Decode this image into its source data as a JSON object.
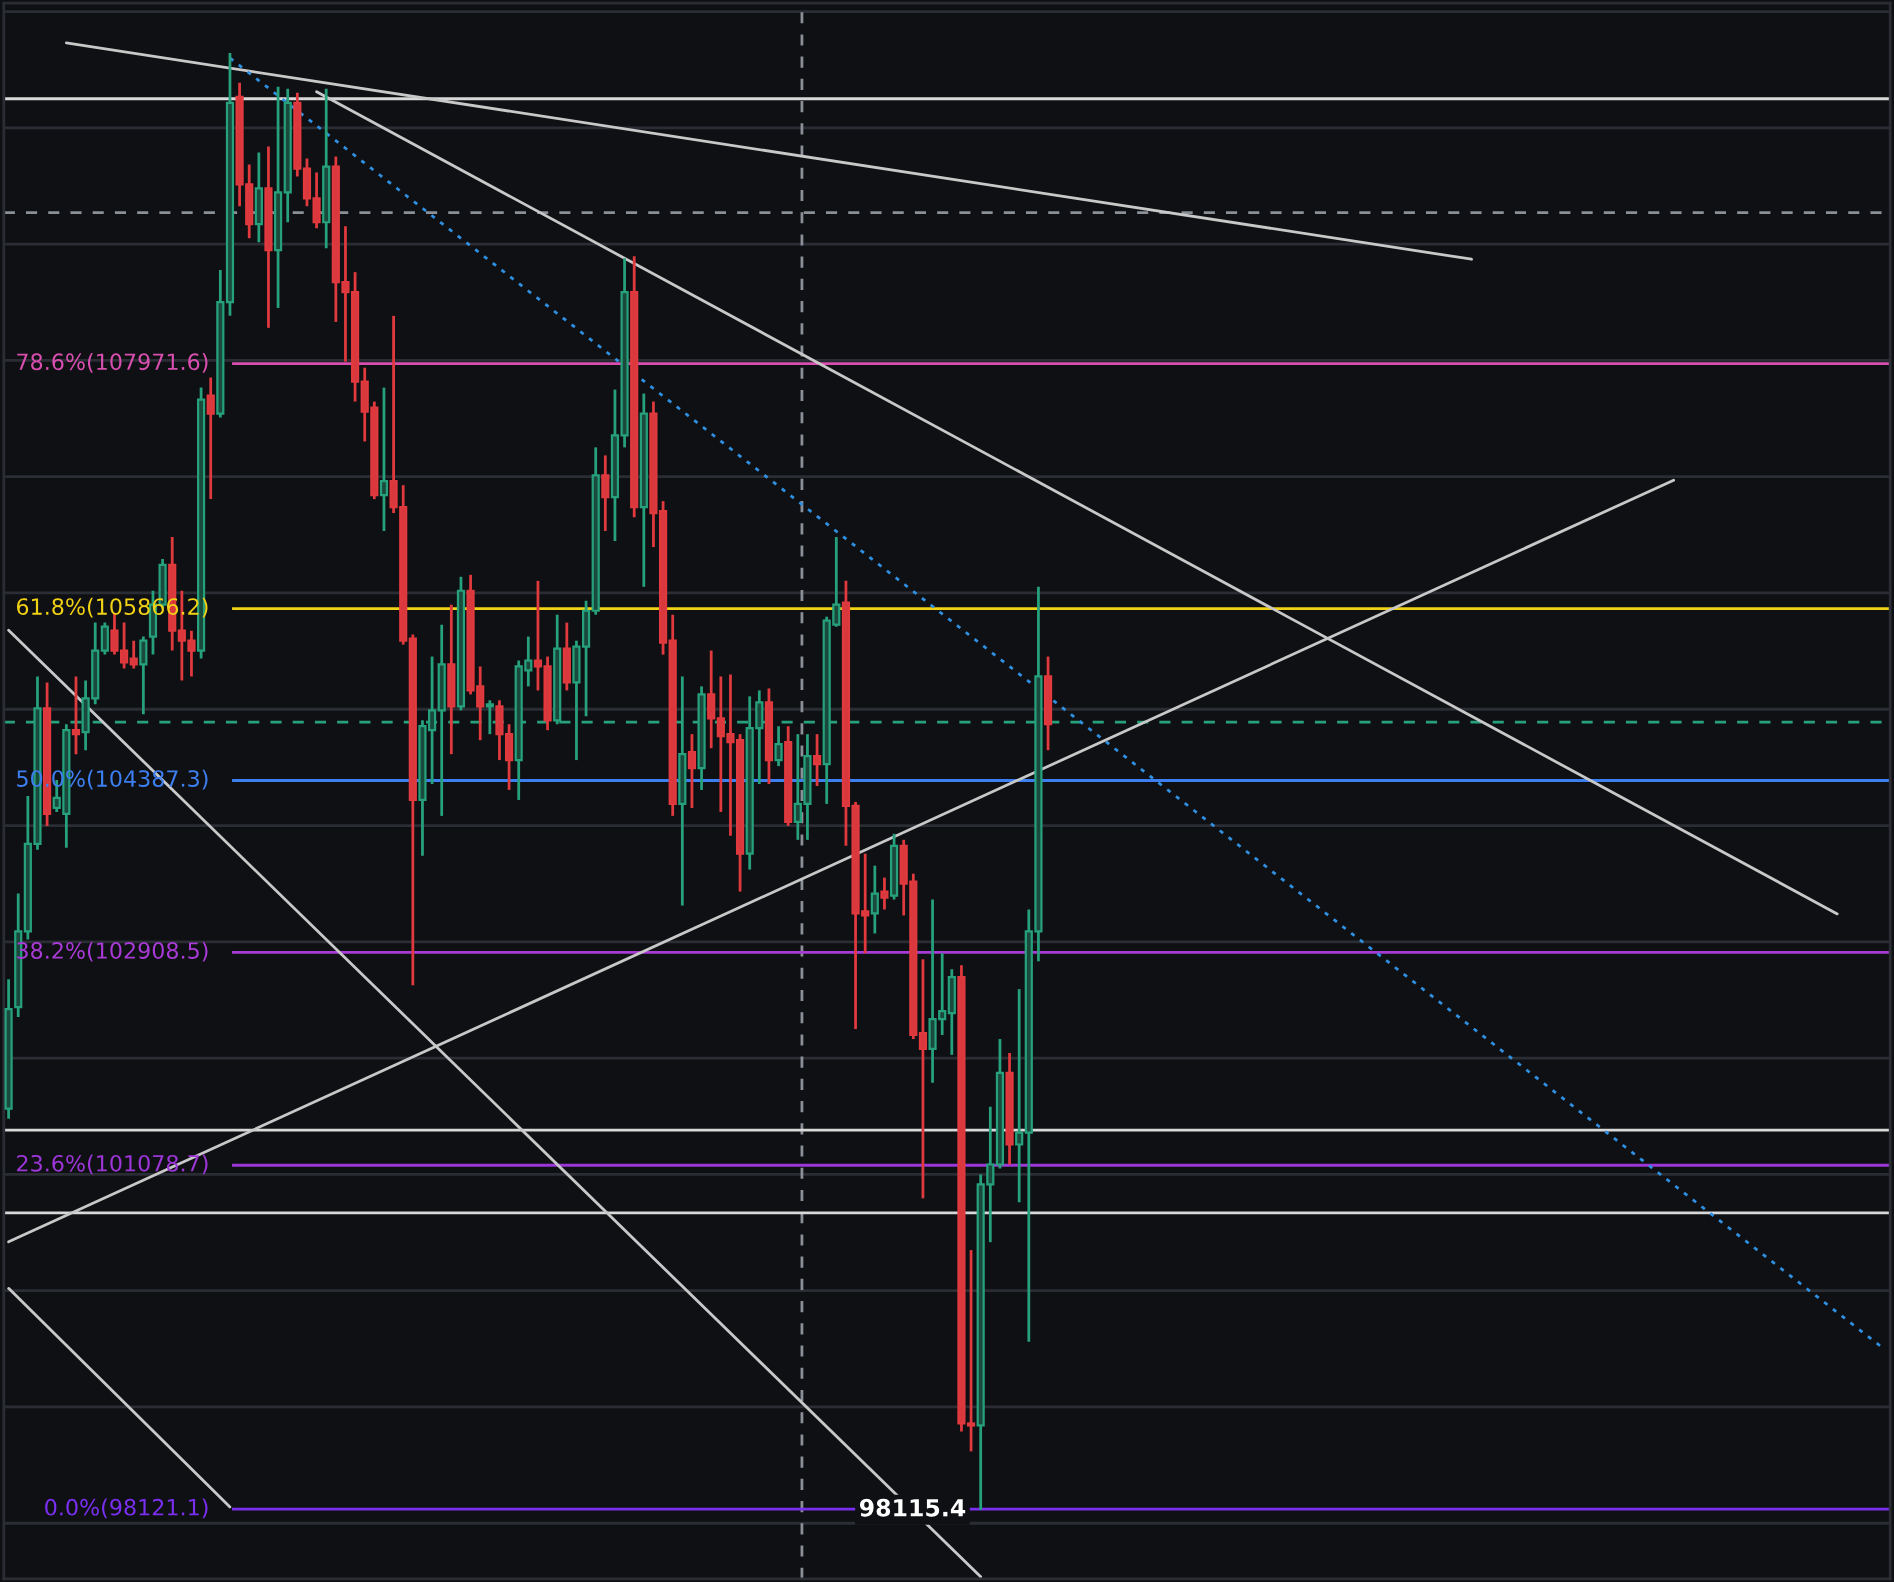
{
  "chart_data": {
    "type": "candlestick",
    "categories": [
      null,
      null,
      null,
      null,
      null,
      null,
      null,
      null,
      null,
      null,
      null,
      null,
      null,
      null,
      null,
      null,
      null,
      null,
      null,
      null,
      null,
      null,
      null,
      null,
      null,
      null,
      null,
      null,
      null,
      null,
      null,
      null,
      null,
      null,
      null,
      null,
      null,
      null,
      null,
      null,
      null,
      null,
      null,
      null,
      null,
      null,
      null,
      null,
      null,
      null,
      null,
      null,
      null,
      null,
      null,
      null,
      null,
      null,
      null,
      null,
      null,
      null,
      null,
      null,
      null,
      null,
      null,
      null,
      null,
      null,
      null,
      null,
      null,
      null,
      null,
      null,
      null,
      null,
      null,
      null,
      null,
      null,
      null,
      null,
      null,
      null,
      null,
      null,
      null,
      null,
      null,
      null,
      null,
      null,
      null,
      null,
      null,
      null,
      null,
      null,
      null,
      null,
      null,
      null,
      null,
      null,
      null,
      null,
      null,
      null,
      null,
      null,
      null,
      null,
      null,
      null,
      null,
      null,
      null,
      null,
      null,
      null,
      null,
      null,
      null,
      null,
      null,
      null,
      null,
      null,
      null,
      null,
      null,
      null,
      null,
      null,
      null,
      null,
      null,
      null,
      null,
      null,
      null,
      null,
      null,
      null,
      null,
      null,
      null,
      null,
      null,
      null,
      null,
      null,
      null,
      null,
      null,
      null,
      null,
      null,
      null,
      null,
      null,
      null,
      null,
      null,
      null,
      null,
      null,
      null,
      null,
      null,
      null,
      null,
      null,
      null,
      null,
      null,
      null,
      null,
      null,
      null,
      null,
      null,
      null,
      null,
      null,
      null,
      null,
      null,
      null,
      null,
      null,
      null,
      null,
      null
    ],
    "ohlc": [
      [
        101565,
        102678,
        101479,
        102421
      ],
      [
        102438,
        103415,
        102353,
        103089
      ],
      [
        103089,
        104254,
        103020,
        103843
      ],
      [
        103843,
        105282,
        103792,
        105008
      ],
      [
        105008,
        105231,
        103997,
        104100
      ],
      [
        104151,
        104391,
        104117,
        104237
      ],
      [
        104100,
        104871,
        103809,
        104820
      ],
      [
        104820,
        105282,
        104614,
        104786
      ],
      [
        104803,
        105248,
        104648,
        105094
      ],
      [
        105094,
        105745,
        105042,
        105505
      ],
      [
        105505,
        105745,
        105470,
        105710
      ],
      [
        105676,
        105830,
        105470,
        105505
      ],
      [
        105505,
        105745,
        105351,
        105402
      ],
      [
        105436,
        105590,
        105351,
        105385
      ],
      [
        105385,
        105625,
        104957,
        105590
      ],
      [
        105625,
        106019,
        105470,
        105899
      ],
      [
        105899,
        106293,
        105865,
        106241
      ],
      [
        106241,
        106481,
        105505,
        105676
      ],
      [
        105676,
        106019,
        105248,
        105590
      ],
      [
        105590,
        105676,
        105282,
        105505
      ],
      [
        105505,
        107766,
        105436,
        107663
      ],
      [
        107697,
        107852,
        106807,
        107543
      ],
      [
        107543,
        108777,
        107509,
        108502
      ],
      [
        108502,
        110644,
        108383,
        110215
      ],
      [
        110267,
        110387,
        109325,
        109513
      ],
      [
        109513,
        109684,
        109051,
        109171
      ],
      [
        109171,
        109787,
        109016,
        109479
      ],
      [
        109479,
        109839,
        108280,
        108948
      ],
      [
        108948,
        110353,
        108451,
        109445
      ],
      [
        109445,
        110335,
        109188,
        110215
      ],
      [
        110215,
        110301,
        109582,
        109650
      ],
      [
        109650,
        109736,
        109325,
        109393
      ],
      [
        109393,
        109616,
        109136,
        109188
      ],
      [
        109188,
        110335,
        108965,
        109667
      ],
      [
        109667,
        109753,
        108331,
        108674
      ],
      [
        108674,
        109153,
        107989,
        108588
      ],
      [
        108588,
        108759,
        107646,
        107817
      ],
      [
        107817,
        107937,
        107303,
        107560
      ],
      [
        107594,
        107646,
        106807,
        106841
      ],
      [
        106841,
        107766,
        106533,
        106961
      ],
      [
        106961,
        108383,
        106687,
        106738
      ],
      [
        106738,
        106927,
        105556,
        105590
      ],
      [
        105608,
        105642,
        102627,
        104220
      ],
      [
        104220,
        104905,
        103740,
        104854
      ],
      [
        104820,
        105453,
        104357,
        104991
      ],
      [
        104991,
        105727,
        104083,
        105385
      ],
      [
        105385,
        105899,
        104614,
        105025
      ],
      [
        105025,
        106139,
        104991,
        106019
      ],
      [
        106019,
        106156,
        105128,
        105162
      ],
      [
        105197,
        105368,
        104734,
        105025
      ],
      [
        105025,
        105077,
        104786,
        105042
      ],
      [
        105025,
        105077,
        104563,
        104786
      ],
      [
        104786,
        104871,
        104306,
        104563
      ],
      [
        104563,
        105419,
        104220,
        105368
      ],
      [
        105334,
        105625,
        105197,
        105419
      ],
      [
        105419,
        106104,
        105162,
        105368
      ],
      [
        105368,
        105453,
        104820,
        104905
      ],
      [
        104905,
        105813,
        104871,
        105522
      ],
      [
        105522,
        105745,
        105162,
        105231
      ],
      [
        105231,
        105590,
        104563,
        105539
      ],
      [
        105539,
        105933,
        104940,
        105847
      ],
      [
        105847,
        107252,
        105813,
        107012
      ],
      [
        107012,
        107183,
        106533,
        106824
      ],
      [
        106824,
        107749,
        106447,
        107355
      ],
      [
        107355,
        108879,
        107252,
        108588
      ],
      [
        108588,
        108896,
        106652,
        106738
      ],
      [
        106738,
        107715,
        106053,
        107543
      ],
      [
        107543,
        107646,
        106395,
        106687
      ],
      [
        106704,
        106790,
        105470,
        105573
      ],
      [
        105590,
        105813,
        104083,
        104186
      ],
      [
        104186,
        105282,
        103312,
        104614
      ],
      [
        104631,
        104786,
        104151,
        104494
      ],
      [
        104494,
        105197,
        104306,
        105128
      ],
      [
        105128,
        105505,
        104665,
        104922
      ],
      [
        104922,
        105282,
        104117,
        104768
      ],
      [
        104786,
        105299,
        103912,
        104717
      ],
      [
        104734,
        104786,
        103432,
        103758
      ],
      [
        103758,
        105111,
        103621,
        104837
      ],
      [
        104837,
        105162,
        104357,
        105060
      ],
      [
        105060,
        105179,
        104357,
        104563
      ],
      [
        104563,
        104854,
        104511,
        104700
      ],
      [
        104717,
        104854,
        103997,
        104032
      ],
      [
        104032,
        104786,
        103877,
        104186
      ],
      [
        104186,
        104786,
        103877,
        104597
      ],
      [
        104597,
        104786,
        104340,
        104528
      ],
      [
        104528,
        105796,
        104186,
        105762
      ],
      [
        105727,
        106481,
        105710,
        105899
      ],
      [
        105916,
        106104,
        103826,
        104169
      ],
      [
        104169,
        104203,
        102250,
        103244
      ],
      [
        103261,
        103758,
        102901,
        103227
      ],
      [
        103244,
        103655,
        103072,
        103415
      ],
      [
        103432,
        103552,
        103278,
        103381
      ],
      [
        103398,
        103929,
        103364,
        103826
      ],
      [
        103826,
        103877,
        103227,
        103501
      ],
      [
        103518,
        103586,
        102164,
        102199
      ],
      [
        102216,
        102850,
        100794,
        102079
      ],
      [
        102079,
        103364,
        101788,
        102336
      ],
      [
        102336,
        102901,
        102199,
        102404
      ],
      [
        102387,
        102764,
        102028,
        102696
      ],
      [
        102696,
        102798,
        98790,
        98858
      ],
      [
        98858,
        100349,
        98618,
        98841
      ],
      [
        98841,
        101000,
        98115.4,
        100914
      ],
      [
        100914,
        101582,
        100417,
        101085
      ],
      [
        101085,
        102164,
        101051,
        101873
      ],
      [
        101873,
        102044,
        101085,
        101257
      ],
      [
        101257,
        102593,
        100760,
        101360
      ],
      [
        101360,
        103278,
        99561,
        103089
      ],
      [
        103089,
        106053,
        102833,
        105282
      ],
      [
        105282,
        105453,
        104648,
        104871
      ],
      null,
      null,
      null,
      null,
      null,
      null,
      null,
      null,
      null,
      null,
      null,
      null,
      null,
      null,
      null,
      null,
      null,
      null,
      null,
      null,
      null,
      null,
      null,
      null,
      null,
      null,
      null,
      null,
      null,
      null,
      null,
      null,
      null,
      null,
      null,
      null,
      null,
      null,
      null,
      null,
      null,
      null,
      null,
      null,
      null,
      null,
      null,
      null,
      null,
      null,
      null,
      null,
      null,
      null,
      null,
      null,
      null,
      null,
      null,
      null,
      null,
      null,
      null,
      null,
      null,
      null,
      null,
      null,
      null,
      null,
      null,
      null,
      null,
      null,
      null,
      null,
      null,
      null,
      null,
      null,
      null,
      null,
      null,
      null,
      null,
      null,
      null
    ],
    "series": [
      {
        "type": "line",
        "color": "#c8c8c8",
        "line_style": "solid",
        "values": [
          null,
          null,
          null,
          null,
          null,
          null,
          110730,
          null,
          null,
          null,
          null,
          null,
          null,
          null,
          null,
          null,
          null,
          null,
          null,
          null,
          null,
          null,
          null,
          null,
          null,
          null,
          null,
          null,
          null,
          null,
          null,
          null,
          null,
          null,
          null,
          null,
          null,
          null,
          null,
          null,
          null,
          null,
          null,
          null,
          null,
          null,
          null,
          null,
          null,
          null,
          null,
          null,
          null,
          null,
          null,
          null,
          null,
          null,
          null,
          null,
          null,
          null,
          null,
          null,
          null,
          null,
          null,
          null,
          null,
          null,
          null,
          null,
          null,
          null,
          null,
          null,
          null,
          null,
          null,
          null,
          null,
          null,
          null,
          null,
          null,
          null,
          null,
          null,
          null,
          null,
          null,
          null,
          null,
          null,
          null,
          null,
          null,
          null,
          null,
          null,
          null,
          null,
          null,
          null,
          null,
          null,
          null,
          null,
          null,
          null,
          null,
          null,
          null,
          null,
          null,
          null,
          null,
          null,
          null,
          null,
          null,
          null,
          null,
          null,
          null,
          null,
          null,
          null,
          null,
          null,
          null,
          null,
          null,
          null,
          null,
          null,
          null,
          null,
          null,
          null,
          null,
          null,
          null,
          null,
          null,
          null,
          null,
          null,
          null,
          null,
          null,
          null,
          108870,
          null,
          null,
          null,
          null,
          null,
          null,
          null,
          null,
          null,
          null,
          null,
          null,
          null,
          null,
          null,
          null,
          null,
          null,
          null,
          null,
          null,
          null,
          null,
          null,
          null,
          null,
          null,
          null,
          null,
          null,
          null,
          null,
          null,
          null,
          null,
          null,
          null,
          null,
          null,
          null,
          null,
          null,
          null
        ]
      },
      {
        "type": "line",
        "color": "#c8c8c8",
        "line_style": "solid",
        "values": [
          null,
          null,
          null,
          null,
          null,
          null,
          null,
          null,
          null,
          null,
          null,
          null,
          null,
          null,
          null,
          null,
          null,
          null,
          null,
          null,
          null,
          null,
          null,
          null,
          null,
          null,
          null,
          null,
          null,
          null,
          null,
          null,
          110310,
          null,
          null,
          null,
          null,
          null,
          null,
          null,
          null,
          null,
          null,
          null,
          null,
          null,
          null,
          null,
          null,
          null,
          null,
          null,
          null,
          null,
          null,
          null,
          null,
          null,
          null,
          null,
          null,
          null,
          null,
          null,
          null,
          null,
          null,
          null,
          null,
          null,
          null,
          null,
          null,
          null,
          null,
          null,
          null,
          null,
          null,
          null,
          null,
          null,
          null,
          null,
          null,
          null,
          null,
          null,
          null,
          null,
          null,
          null,
          null,
          null,
          null,
          null,
          null,
          null,
          null,
          null,
          null,
          null,
          null,
          null,
          null,
          null,
          null,
          null,
          null,
          null,
          null,
          null,
          null,
          null,
          null,
          null,
          null,
          null,
          null,
          null,
          null,
          null,
          null,
          null,
          null,
          null,
          null,
          null,
          null,
          null,
          null,
          null,
          null,
          null,
          null,
          null,
          null,
          null,
          null,
          null,
          null,
          null,
          null,
          null,
          null,
          null,
          null,
          null,
          null,
          null,
          null,
          null,
          null,
          null,
          null,
          null,
          null,
          null,
          null,
          null,
          null,
          null,
          null,
          null,
          null,
          null,
          null,
          null,
          null,
          null,
          null,
          null,
          null,
          null,
          null,
          null,
          null,
          null,
          null,
          null,
          null,
          null,
          null,
          null,
          null,
          null,
          null,
          null,
          null,
          null,
          103240,
          null,
          null,
          null,
          null,
          null
        ]
      },
      {
        "type": "line",
        "color": "#c8c8c8",
        "line_style": "solid",
        "values": [
          105680,
          null,
          null,
          null,
          null,
          null,
          null,
          null,
          null,
          null,
          null,
          null,
          null,
          null,
          null,
          null,
          null,
          null,
          null,
          null,
          null,
          null,
          null,
          null,
          null,
          null,
          null,
          null,
          null,
          null,
          null,
          null,
          null,
          null,
          null,
          null,
          null,
          null,
          null,
          null,
          null,
          null,
          null,
          null,
          null,
          null,
          null,
          null,
          null,
          null,
          null,
          null,
          null,
          null,
          null,
          null,
          null,
          null,
          null,
          null,
          null,
          null,
          null,
          null,
          null,
          null,
          null,
          null,
          null,
          null,
          null,
          null,
          null,
          null,
          null,
          null,
          null,
          null,
          null,
          null,
          null,
          null,
          null,
          null,
          null,
          null,
          null,
          null,
          null,
          null,
          null,
          null,
          null,
          null,
          null,
          null,
          null,
          null,
          null,
          null,
          null,
          97540,
          null,
          null,
          null,
          null,
          null,
          null,
          null,
          null,
          null,
          null,
          null,
          null,
          null,
          null,
          null,
          null,
          null,
          null,
          null,
          null,
          null,
          null,
          null,
          null,
          null,
          null,
          null,
          null,
          null,
          null,
          null,
          null,
          null,
          null,
          null,
          null,
          null,
          null,
          null,
          null,
          null,
          null,
          null,
          null,
          null,
          null,
          null,
          null,
          null,
          null,
          null,
          null,
          null,
          null,
          null,
          null,
          null,
          null,
          null,
          null,
          null,
          null,
          null,
          null,
          null,
          null,
          null,
          null,
          null,
          null,
          null,
          null,
          null,
          null,
          null,
          null,
          null,
          null,
          null,
          null,
          null,
          null,
          null,
          null,
          null,
          null,
          null,
          null,
          null,
          null,
          null,
          null,
          null,
          null
        ]
      },
      {
        "type": "line",
        "color": "#c8c8c8",
        "line_style": "solid",
        "values": [
          100020,
          null,
          null,
          null,
          null,
          null,
          null,
          null,
          null,
          null,
          null,
          null,
          null,
          null,
          null,
          null,
          null,
          null,
          null,
          null,
          null,
          null,
          null,
          98140,
          null,
          null,
          null,
          null,
          null,
          null,
          null,
          null,
          null,
          null,
          null,
          null,
          null,
          null,
          null,
          null,
          null,
          null,
          null,
          null,
          null,
          null,
          null,
          null,
          null,
          null,
          null,
          null,
          null,
          null,
          null,
          null,
          null,
          null,
          null,
          null,
          null,
          null,
          null,
          null,
          null,
          null,
          null,
          null,
          null,
          null,
          null,
          null,
          null,
          null,
          null,
          null,
          null,
          null,
          null,
          null,
          null,
          null,
          null,
          null,
          null,
          null,
          null,
          null,
          null,
          null,
          null,
          null,
          null,
          null,
          null,
          null,
          null,
          null,
          null,
          null,
          null,
          null,
          null,
          null,
          null,
          null,
          null,
          null,
          null,
          null,
          null,
          null,
          null,
          null,
          null,
          null,
          null,
          null,
          null,
          null,
          null,
          null,
          null,
          null,
          null,
          null,
          null,
          null,
          null,
          null,
          null,
          null,
          null,
          null,
          null,
          null,
          null,
          null,
          null,
          null,
          null,
          null,
          null,
          null,
          null,
          null,
          null,
          null,
          null,
          null,
          null,
          null,
          null,
          null,
          null,
          null,
          null,
          null,
          null,
          null,
          null,
          null,
          null,
          null,
          null,
          null,
          null,
          null,
          null,
          null,
          null,
          null,
          null,
          null,
          null,
          null,
          null,
          null,
          null,
          null,
          null,
          null,
          null,
          null,
          null,
          null,
          null,
          null,
          null,
          null,
          null,
          null,
          null,
          null,
          null,
          null
        ]
      },
      {
        "type": "line",
        "color": "#c8c8c8",
        "line_style": "solid",
        "values": [
          100420,
          null,
          null,
          null,
          null,
          null,
          null,
          null,
          null,
          null,
          null,
          null,
          null,
          null,
          null,
          null,
          null,
          null,
          null,
          null,
          null,
          null,
          null,
          null,
          null,
          null,
          null,
          null,
          null,
          null,
          null,
          null,
          null,
          null,
          null,
          null,
          null,
          null,
          null,
          null,
          null,
          null,
          null,
          null,
          null,
          null,
          null,
          null,
          null,
          null,
          null,
          null,
          null,
          null,
          null,
          null,
          null,
          null,
          null,
          null,
          null,
          null,
          null,
          null,
          null,
          null,
          null,
          null,
          null,
          null,
          null,
          null,
          null,
          null,
          null,
          null,
          null,
          null,
          null,
          null,
          null,
          null,
          null,
          null,
          null,
          null,
          null,
          null,
          null,
          null,
          null,
          null,
          null,
          null,
          null,
          null,
          null,
          null,
          null,
          null,
          null,
          null,
          null,
          null,
          null,
          null,
          null,
          null,
          null,
          null,
          null,
          null,
          null,
          null,
          null,
          null,
          null,
          null,
          null,
          null,
          null,
          null,
          null,
          null,
          null,
          null,
          null,
          null,
          null,
          null,
          null,
          null,
          null,
          null,
          null,
          null,
          null,
          null,
          null,
          null,
          null,
          null,
          null,
          null,
          null,
          null,
          null,
          null,
          null,
          null,
          null,
          null,
          null,
          null,
          null,
          null,
          null,
          null,
          null,
          null,
          null,
          null,
          null,
          null,
          null,
          null,
          null,
          null,
          null,
          null,
          null,
          null,
          null,
          106970,
          null,
          null,
          null,
          null,
          null,
          null,
          null,
          null,
          null,
          null,
          null,
          null,
          null,
          null,
          null,
          null,
          null,
          null,
          null,
          null,
          null,
          null
        ]
      },
      {
        "type": "line",
        "color": "#2f8fe0",
        "line_style": "dotted",
        "values": [
          null,
          null,
          null,
          null,
          null,
          null,
          null,
          null,
          null,
          null,
          null,
          null,
          null,
          null,
          null,
          null,
          null,
          null,
          null,
          null,
          null,
          null,
          null,
          110600,
          null,
          null,
          null,
          null,
          null,
          null,
          null,
          null,
          null,
          null,
          null,
          null,
          null,
          null,
          null,
          null,
          null,
          null,
          null,
          null,
          null,
          null,
          null,
          null,
          null,
          null,
          null,
          null,
          null,
          null,
          null,
          null,
          null,
          null,
          null,
          null,
          null,
          null,
          null,
          null,
          null,
          null,
          null,
          null,
          null,
          null,
          null,
          null,
          null,
          null,
          null,
          null,
          null,
          null,
          null,
          null,
          null,
          null,
          null,
          null,
          null,
          null,
          null,
          null,
          null,
          null,
          null,
          null,
          null,
          null,
          null,
          null,
          null,
          null,
          null,
          null,
          null,
          null,
          null,
          null,
          null,
          null,
          null,
          null,
          null,
          null,
          null,
          null,
          null,
          null,
          null,
          null,
          null,
          null,
          null,
          null,
          null,
          null,
          null,
          null,
          null,
          null,
          null,
          null,
          null,
          null,
          null,
          null,
          null,
          null,
          null,
          null,
          null,
          null,
          null,
          null,
          null,
          null,
          null,
          null,
          null,
          null,
          null,
          null,
          null,
          null,
          null,
          null,
          null,
          null,
          null,
          null,
          null,
          null,
          null,
          null,
          null,
          null,
          null,
          null,
          null,
          null,
          null,
          null,
          null,
          null,
          null,
          null,
          null,
          null,
          null,
          null,
          null,
          null,
          null,
          null,
          null,
          null,
          null,
          null,
          null,
          null,
          null,
          null,
          null,
          null,
          null,
          null,
          null,
          null,
          null,
          99490
        ]
      }
    ],
    "ref_lines": [
      {
        "axis": "y",
        "value": 107971.6,
        "label": "78.6%(107971.6)",
        "color": "#d94fb0"
      },
      {
        "axis": "y",
        "value": 105866.2,
        "label": "61.8%(105866.2)",
        "color": "#f2d214"
      },
      {
        "axis": "y",
        "value": 104387.3,
        "label": "50.0%(104387.3)",
        "color": "#3d7ff0"
      },
      {
        "axis": "y",
        "value": 102908.5,
        "label": "38.2%(102908.5)",
        "color": "#a83ad6"
      },
      {
        "axis": "y",
        "value": 101078.7,
        "label": "23.6%(101078.7)",
        "color": "#9d36d8"
      },
      {
        "axis": "y",
        "value": 98121.1,
        "label": "0.0%(98121.1)",
        "color": "#7a2ff0"
      },
      {
        "axis": "y",
        "value": 110250,
        "color": "#d8d8d8",
        "line_style": "solid"
      },
      {
        "axis": "y",
        "value": 109270,
        "color": "#8a8f98",
        "line_style": "dashed"
      },
      {
        "axis": "y",
        "value": 104890,
        "color": "#26a17b",
        "line_style": "dashed"
      },
      {
        "axis": "y",
        "value": 101380,
        "color": "#d8d8d8",
        "line_style": "solid"
      },
      {
        "axis": "y",
        "value": 100670,
        "color": "#d8d8d8",
        "line_style": "solid"
      }
    ],
    "annotations": [
      {
        "text": "98115.4",
        "y": 98115.4
      }
    ],
    "ylim": [
      97522,
      111072
    ],
    "yticks": [
      {
        "value": 98000,
        "label": null
      },
      {
        "value": 99000,
        "label": null
      },
      {
        "value": 100000,
        "label": null
      },
      {
        "value": 101000,
        "label": null
      },
      {
        "value": 102000,
        "label": null
      },
      {
        "value": 103000,
        "label": null
      },
      {
        "value": 104000,
        "label": null
      },
      {
        "value": 105000,
        "label": null
      },
      {
        "value": 106000,
        "label": null
      },
      {
        "value": 107000,
        "label": null
      },
      {
        "value": 108000,
        "label": null
      },
      {
        "value": 109000,
        "label": null
      },
      {
        "value": 110000,
        "label": null
      },
      {
        "value": 111000,
        "label": null
      }
    ],
    "grid": "y"
  }
}
